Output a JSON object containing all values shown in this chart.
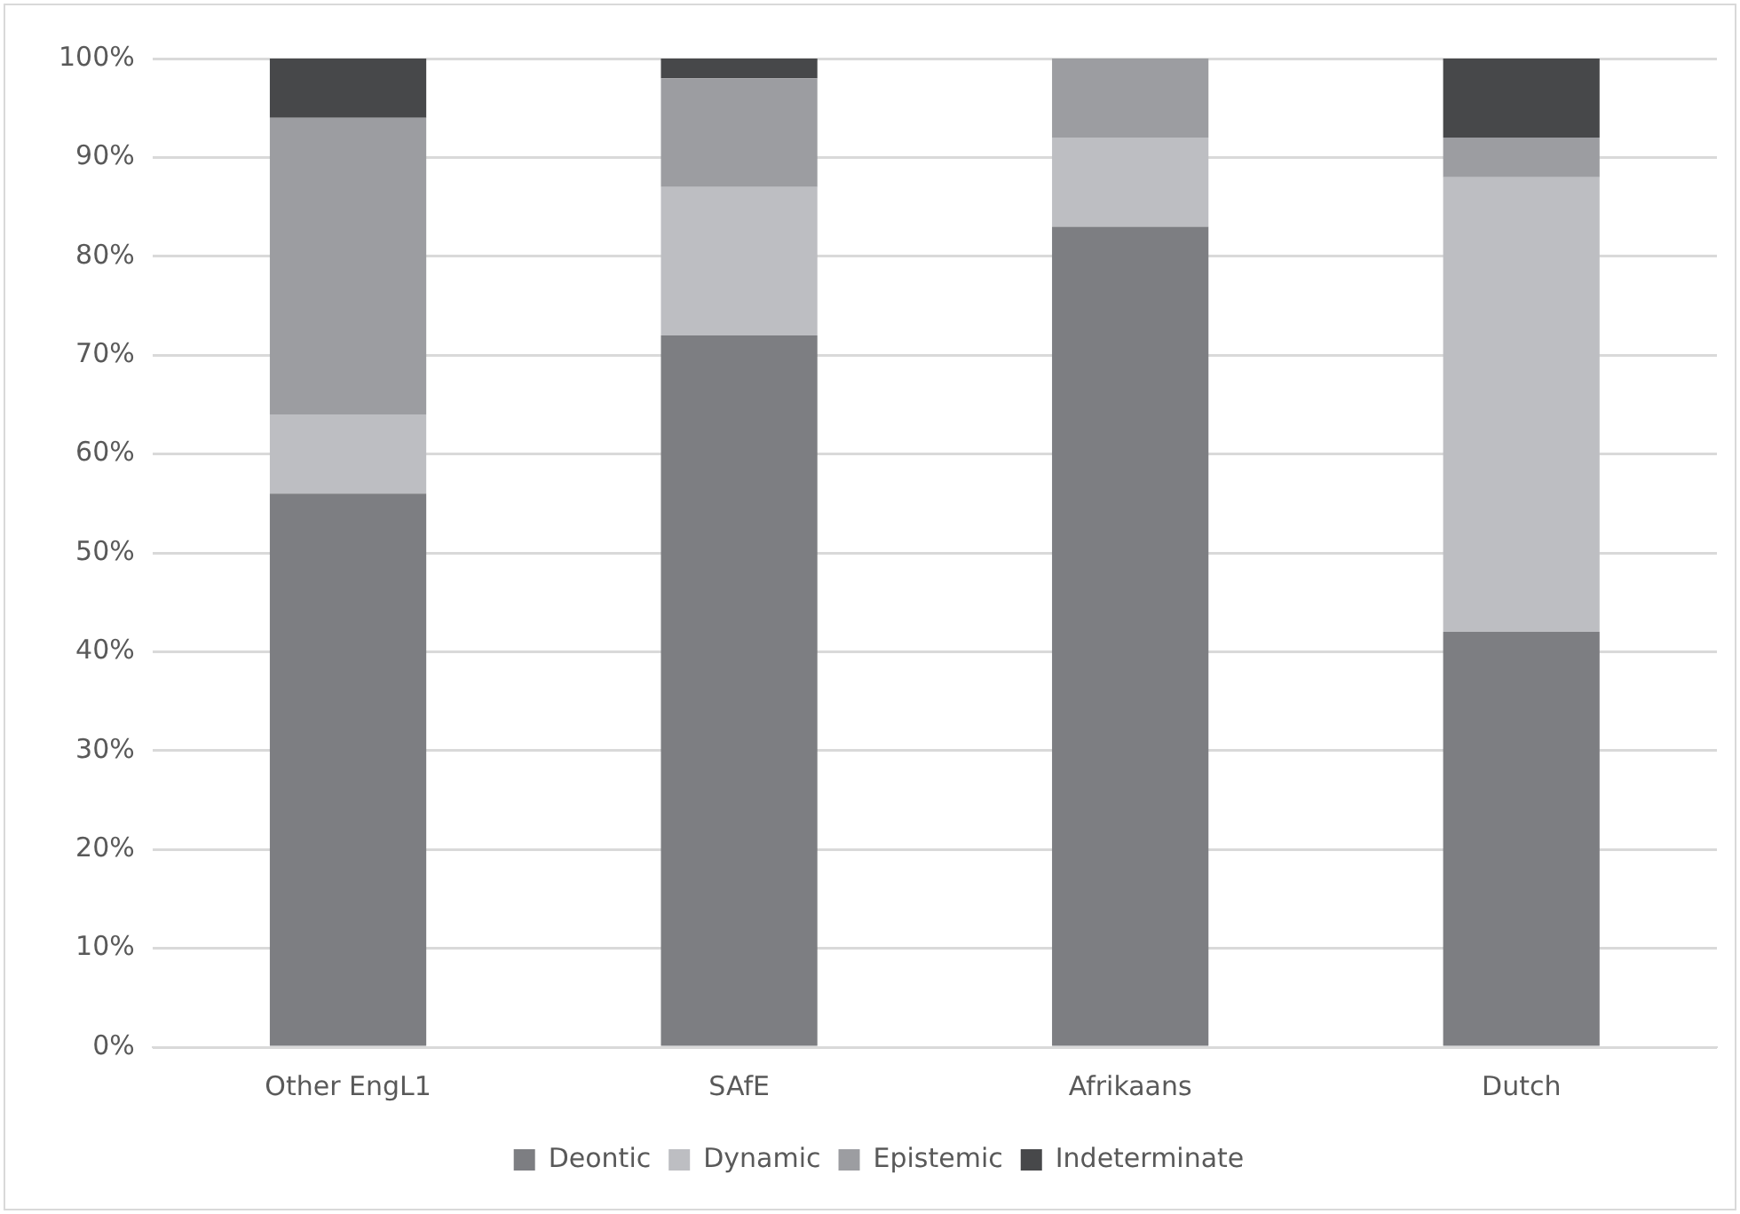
{
  "chart_data": {
    "type": "bar",
    "stacked": true,
    "categories": [
      "Other EngL1",
      "SAfE",
      "Afrikaans",
      "Dutch"
    ],
    "series": [
      {
        "name": "Deontic",
        "color": "#7d7e82",
        "values": [
          56,
          72,
          83,
          42
        ]
      },
      {
        "name": "Dynamic",
        "color": "#bdbec2",
        "values": [
          8,
          15,
          9,
          46
        ]
      },
      {
        "name": "Epistemic",
        "color": "#9c9da1",
        "values": [
          30,
          11,
          8,
          4
        ]
      },
      {
        "name": "Indeterminate",
        "color": "#47484a",
        "values": [
          6,
          2,
          0,
          8
        ]
      }
    ],
    "ylim": [
      0,
      100
    ],
    "yticks": [
      {
        "value": 0,
        "label": "0%"
      },
      {
        "value": 10,
        "label": "10%"
      },
      {
        "value": 20,
        "label": "20%"
      },
      {
        "value": 30,
        "label": "30%"
      },
      {
        "value": 40,
        "label": "40%"
      },
      {
        "value": 50,
        "label": "50%"
      },
      {
        "value": 60,
        "label": "60%"
      },
      {
        "value": 70,
        "label": "70%"
      },
      {
        "value": 80,
        "label": "80%"
      },
      {
        "value": 90,
        "label": "90%"
      },
      {
        "value": 100,
        "label": "100%"
      }
    ],
    "grid": "y",
    "legend": "bottom"
  }
}
